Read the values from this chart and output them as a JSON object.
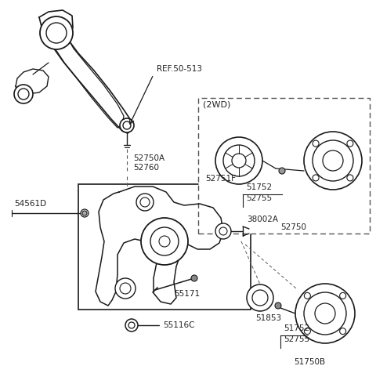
{
  "bg_color": "#ffffff",
  "line_color": "#1a1a1a",
  "text_color": "#222222",
  "dash_color": "#555555",
  "labels": {
    "ref": "REF.50-513",
    "54561D": "54561D",
    "52750A": "52750A",
    "52760": "52760",
    "38002A": "38002A",
    "55171": "55171",
    "55116C": "55116C",
    "2WD": "(2WD)",
    "52751F": "52751F",
    "51752a": "51752",
    "52755a": "52755",
    "52750": "52750",
    "51853": "51853",
    "51752b": "51752",
    "52755b": "52755",
    "51750B": "51750B"
  },
  "figsize": [
    4.8,
    4.9
  ],
  "dpi": 100
}
